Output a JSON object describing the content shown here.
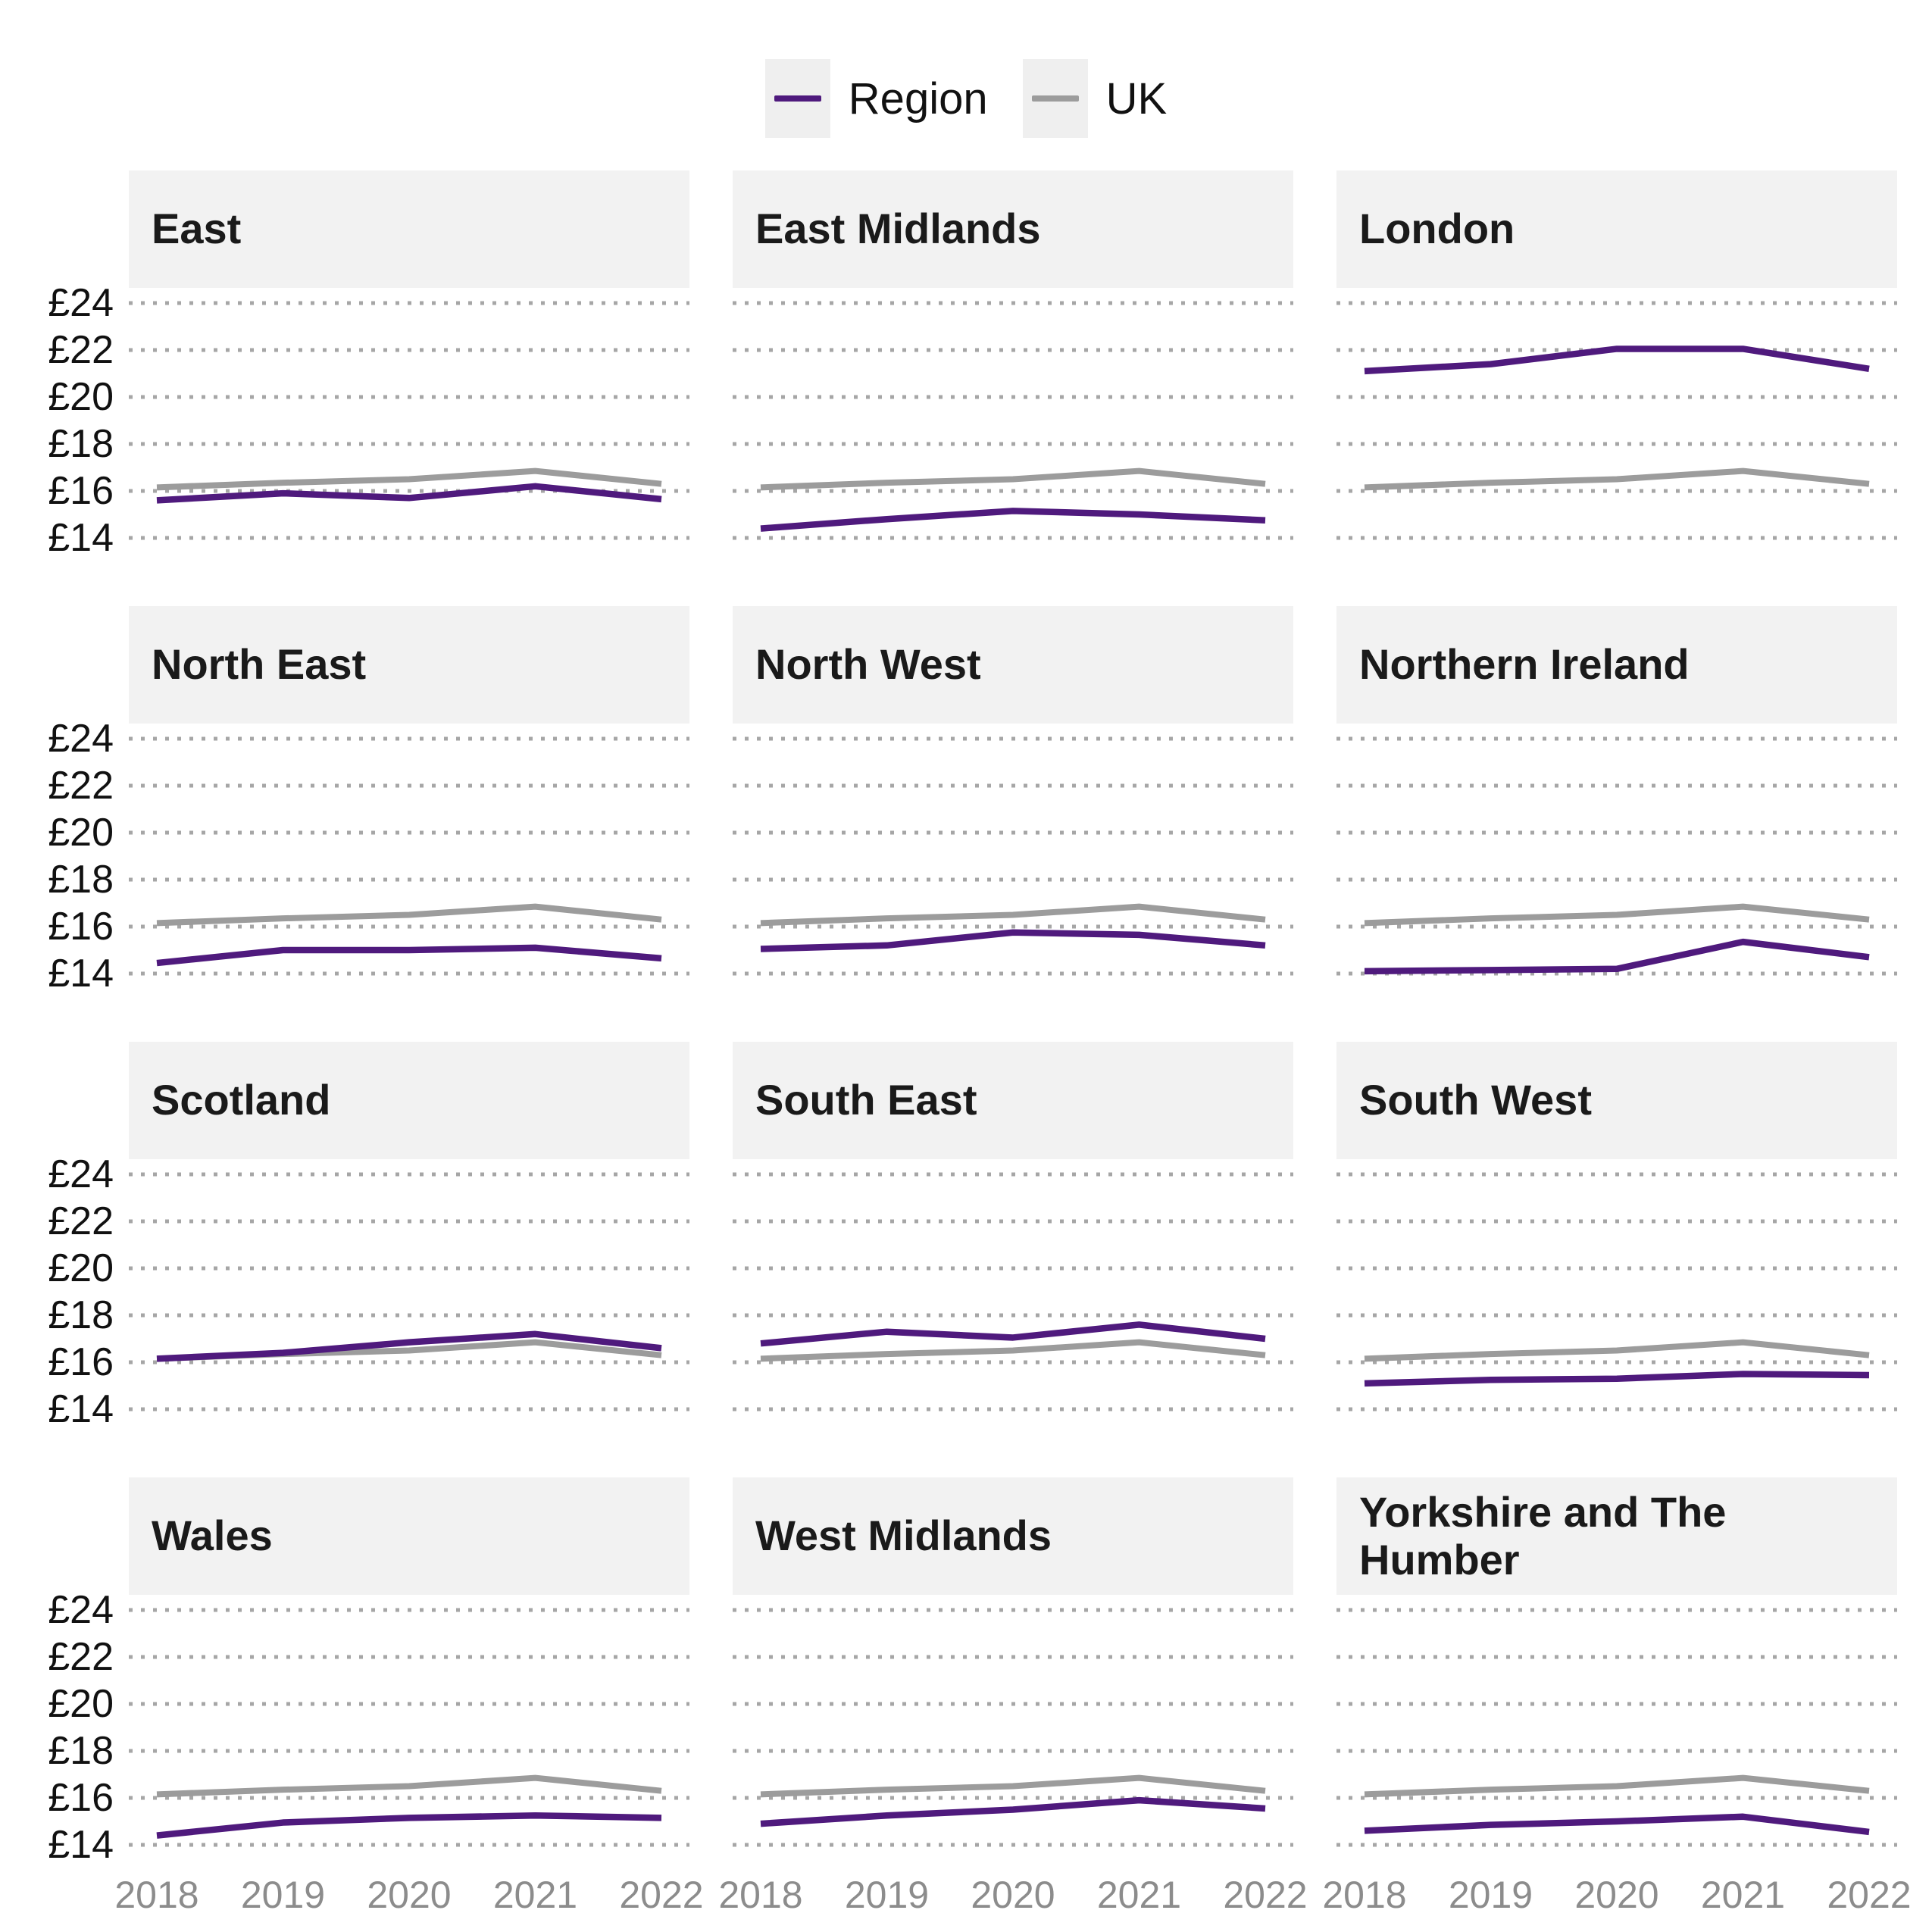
{
  "legend": {
    "region_label": "Region",
    "uk_label": "UK"
  },
  "y_axis": {
    "ticks": [
      "£24",
      "£22",
      "£20",
      "£18",
      "£16",
      "£14"
    ],
    "tick_values": [
      24,
      22,
      20,
      18,
      16,
      14
    ]
  },
  "x_axis": {
    "years": [
      "2018",
      "2019",
      "2020",
      "2021",
      "2022"
    ]
  },
  "colors": {
    "region_line": "#4F1A7D",
    "uk_line": "#9C9C9C",
    "gridline_dot": "#A6A6A6",
    "panel_header_bg": "#F2F2F2",
    "legend_swatch_bg": "#EFEFEF",
    "axis_text": "#111111",
    "x_label_text": "#8C8C8C"
  },
  "chart_data": {
    "type": "line",
    "x": [
      2018,
      2019,
      2020,
      2021,
      2022
    ],
    "ylim": [
      13.2,
      24.8
    ],
    "gridlines": [
      14,
      16,
      18,
      20,
      22,
      24
    ],
    "currency": "£",
    "grid_style": "dotted",
    "legend_position": "top-center",
    "facets": "3 columns x 4 rows, shared axes",
    "uk_series": {
      "name": "UK",
      "values": [
        16.15,
        16.35,
        16.5,
        16.85,
        16.3
      ]
    },
    "panels": [
      {
        "region": "East",
        "values": [
          15.6,
          15.9,
          15.7,
          16.2,
          15.65
        ]
      },
      {
        "region": "East Midlands",
        "values": [
          14.4,
          14.8,
          15.15,
          15.0,
          14.75
        ]
      },
      {
        "region": "London",
        "values": [
          21.1,
          21.4,
          22.05,
          22.05,
          21.2
        ]
      },
      {
        "region": "North East",
        "values": [
          14.45,
          15.0,
          15.0,
          15.1,
          14.65
        ]
      },
      {
        "region": "North West",
        "values": [
          15.05,
          15.2,
          15.75,
          15.65,
          15.2
        ]
      },
      {
        "region": "Northern Ireland",
        "values": [
          14.1,
          14.15,
          14.2,
          15.35,
          14.7
        ]
      },
      {
        "region": "Scotland",
        "values": [
          16.15,
          16.4,
          16.85,
          17.2,
          16.6
        ]
      },
      {
        "region": "South East",
        "values": [
          16.8,
          17.3,
          17.05,
          17.6,
          17.0
        ]
      },
      {
        "region": "South West",
        "values": [
          15.1,
          15.25,
          15.3,
          15.5,
          15.45
        ]
      },
      {
        "region": "Wales",
        "values": [
          14.4,
          14.95,
          15.15,
          15.25,
          15.15
        ]
      },
      {
        "region": "West Midlands",
        "values": [
          14.9,
          15.25,
          15.5,
          15.9,
          15.55
        ]
      },
      {
        "region": "Yorkshire and The Humber",
        "values": [
          14.6,
          14.85,
          15.0,
          15.2,
          14.55
        ]
      }
    ]
  }
}
